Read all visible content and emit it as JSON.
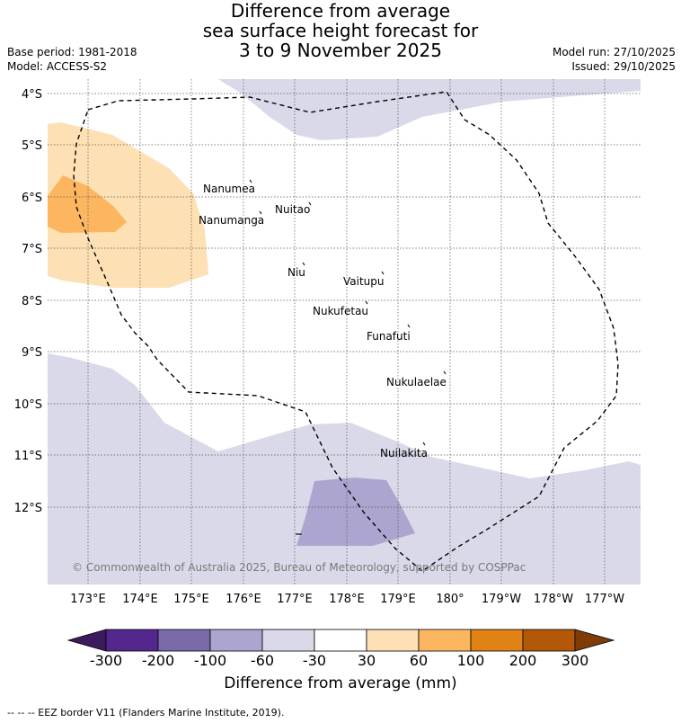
{
  "title": {
    "line1": "Difference from average",
    "line2": "sea surface height forecast for",
    "line3": "3 to 9 November 2025"
  },
  "meta_left": {
    "base_period": "Base period: 1981-2018",
    "model": "Model: ACCESS-S2"
  },
  "meta_right": {
    "model_run": "Model run: 27/10/2025",
    "issued": "Issued: 29/10/2025"
  },
  "latitude_labels": [
    "4°S",
    "5°S",
    "6°S",
    "7°S",
    "8°S",
    "9°S",
    "10°S",
    "11°S",
    "12°S"
  ],
  "longitude_labels": [
    "173°E",
    "174°E",
    "175°E",
    "176°E",
    "177°E",
    "178°E",
    "179°E",
    "180°",
    "179°W",
    "178°W",
    "177°W"
  ],
  "islands": [
    "Nanumea",
    "Nuitao",
    "Nanumanga",
    "Niu",
    "Vaitupu",
    "Nukufetau",
    "Funafuti",
    "Nukulaelae",
    "Nuilakita"
  ],
  "copyright": "© Commonwealth of Australia 2025, Bureau of Meteorology, supported by COSPPac",
  "colorbar": {
    "ticks": [
      "-300",
      "-200",
      "-100",
      "-60",
      "-30",
      "30",
      "60",
      "100",
      "200",
      "300"
    ],
    "colors": {
      "below_min": "#3d1a5e",
      "c1": "#54278f",
      "c2": "#7a6aa9",
      "c3": "#aba5cf",
      "c4": "#d9d9ea",
      "c5": "#ffffff",
      "c6": "#fde0b4",
      "c7": "#fdb660",
      "c8": "#e08214",
      "c9": "#b35806",
      "above_max": "#7f3b08"
    },
    "title": "Difference from average (mm)"
  },
  "eez_note": "-- -- -- EEZ border V11 (Flanders Marine Institute, 2019)."
}
